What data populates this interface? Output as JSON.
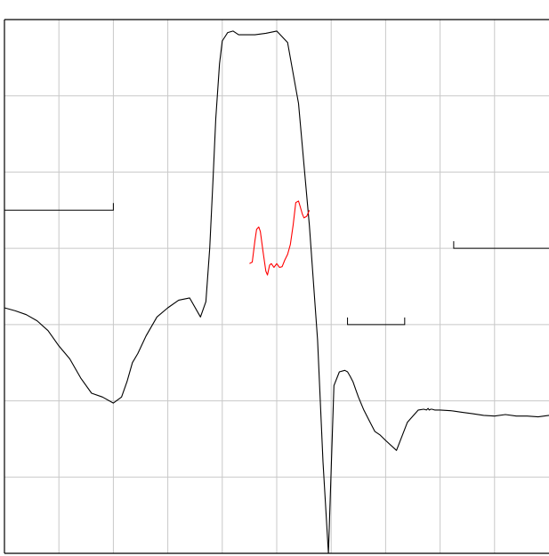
{
  "chart_data": {
    "type": "line",
    "title": "",
    "xlabel": "",
    "ylabel": "",
    "xlim": [
      0,
      10
    ],
    "ylim": [
      0,
      7
    ],
    "grid": true,
    "grid_divisions": {
      "x": 10,
      "y": 7
    },
    "colors": {
      "main": "#000000",
      "ripple": "#ff0000",
      "grid": "#c8c8c8",
      "frame": "#000000"
    },
    "series": [
      {
        "id": "main",
        "x": [
          0.0,
          0.2,
          0.4,
          0.6,
          0.8,
          1.0,
          1.2,
          1.4,
          1.6,
          1.8,
          2.0,
          2.15,
          2.25,
          2.35,
          2.45,
          2.6,
          2.8,
          3.0,
          3.2,
          3.4,
          3.6,
          3.7,
          3.77,
          3.83,
          3.88,
          3.95,
          4.0,
          4.1,
          4.2,
          4.3,
          4.4,
          4.6,
          4.8,
          5.0,
          5.2,
          5.4,
          5.6,
          5.75,
          5.85,
          5.95,
          6.05,
          6.15,
          6.25,
          6.3,
          6.35,
          6.4,
          6.45,
          6.5,
          6.6,
          6.7,
          6.8,
          6.9,
          7.0,
          7.2,
          7.4,
          7.6,
          7.7,
          7.75,
          7.78,
          7.8,
          7.83,
          7.85,
          7.9,
          8.0,
          8.2,
          8.4,
          8.6,
          8.8,
          9.0,
          9.2,
          9.4,
          9.6,
          9.8,
          10.0
        ],
        "y": [
          3.22,
          3.18,
          3.13,
          3.05,
          2.92,
          2.72,
          2.55,
          2.3,
          2.1,
          2.05,
          1.97,
          2.05,
          2.25,
          2.5,
          2.62,
          2.85,
          3.1,
          3.22,
          3.32,
          3.35,
          3.1,
          3.3,
          4.0,
          4.9,
          5.7,
          6.42,
          6.72,
          6.83,
          6.85,
          6.8,
          6.8,
          6.8,
          6.82,
          6.85,
          6.7,
          5.9,
          4.3,
          2.8,
          1.2,
          0.0,
          2.2,
          2.38,
          2.4,
          2.38,
          2.32,
          2.25,
          2.15,
          2.05,
          1.88,
          1.74,
          1.6,
          1.55,
          1.48,
          1.35,
          1.72,
          1.88,
          1.89,
          1.88,
          1.9,
          1.88,
          1.89,
          1.89,
          1.88,
          1.88,
          1.87,
          1.85,
          1.83,
          1.81,
          1.8,
          1.82,
          1.8,
          1.8,
          1.79,
          1.81
        ]
      },
      {
        "id": "ripple",
        "x": [
          4.5,
          4.55,
          4.6,
          4.63,
          4.67,
          4.7,
          4.75,
          4.8,
          4.83,
          4.87,
          4.9,
          4.95,
          5.0,
          5.05,
          5.1,
          5.15,
          5.2,
          5.25,
          5.3,
          5.35,
          5.4,
          5.43,
          5.47,
          5.5,
          5.55,
          5.6
        ],
        "y": [
          3.8,
          3.82,
          4.1,
          4.25,
          4.28,
          4.22,
          3.95,
          3.7,
          3.65,
          3.78,
          3.8,
          3.75,
          3.8,
          3.75,
          3.76,
          3.85,
          3.92,
          4.05,
          4.3,
          4.6,
          4.62,
          4.55,
          4.45,
          4.4,
          4.42,
          4.5
        ]
      }
    ],
    "spec_lines": [
      {
        "id": "spec-left",
        "x": [
          0.0,
          2.0
        ],
        "y": 4.5,
        "tick": "end-up"
      },
      {
        "id": "spec-right-stop",
        "x": [
          8.25,
          10.0
        ],
        "y": 4.0,
        "tick": "start-up"
      },
      {
        "id": "spec-notch",
        "x": [
          6.3,
          7.35
        ],
        "y": 3.0,
        "tick": "both-up"
      }
    ]
  }
}
